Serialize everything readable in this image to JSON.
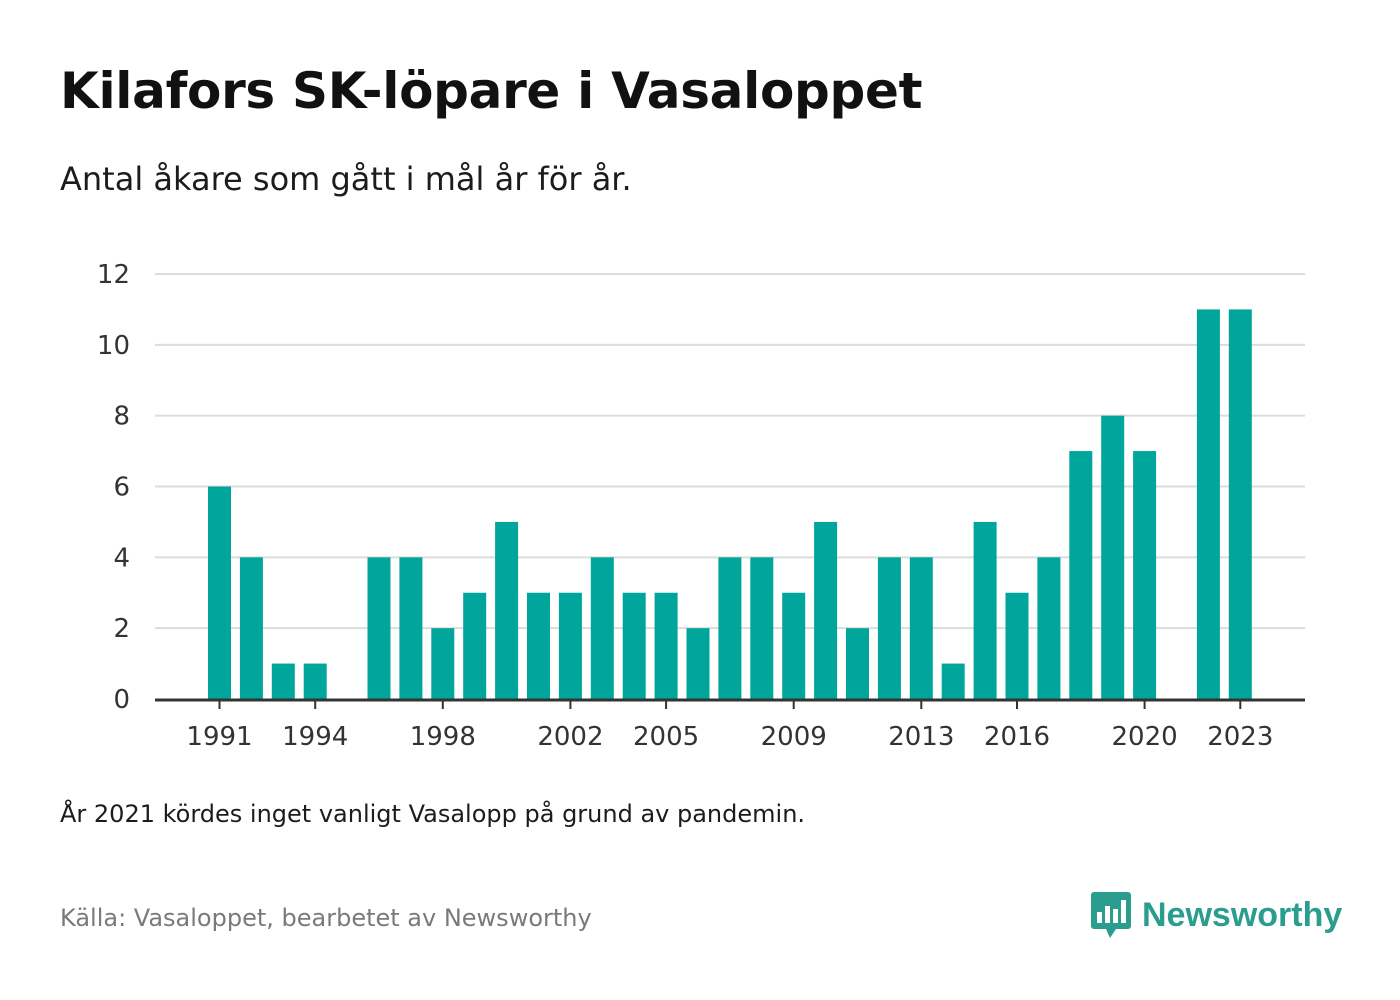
{
  "header": {
    "title": "Kilafors SK-löpare i Vasaloppet",
    "subtitle": "Antal åkare som gått i mål år för år."
  },
  "footer": {
    "note": "År 2021 kördes inget vanligt Vasalopp på grund av pandemin.",
    "source": "Källa: Vasaloppet, bearbetet av Newsworthy",
    "brand": "Newsworthy",
    "brand_icon": "newsworthy-chart-icon"
  },
  "colors": {
    "bar": "#00a59b",
    "grid": "#dcdcdc",
    "axis": "#333333",
    "brand": "#2a9d8f"
  },
  "chart_data": {
    "type": "bar",
    "categories": [
      "1991",
      "1992",
      "1993",
      "1994",
      "1995",
      "1996",
      "1997",
      "1998",
      "1999",
      "2000",
      "2001",
      "2002",
      "2003",
      "2004",
      "2005",
      "2006",
      "2007",
      "2008",
      "2009",
      "2010",
      "2011",
      "2012",
      "2013",
      "2014",
      "2015",
      "2016",
      "2017",
      "2018",
      "2019",
      "2020",
      "2021",
      "2022",
      "2023"
    ],
    "values": [
      6,
      4,
      1,
      1,
      null,
      4,
      4,
      2,
      3,
      5,
      3,
      3,
      4,
      3,
      3,
      2,
      4,
      4,
      3,
      5,
      2,
      4,
      4,
      1,
      5,
      3,
      4,
      7,
      8,
      7,
      null,
      11,
      11
    ],
    "x_tick_labels": [
      "1991",
      "1994",
      "1998",
      "2002",
      "2005",
      "2009",
      "2013",
      "2016",
      "2020",
      "2023"
    ],
    "y_ticks": [
      0,
      2,
      4,
      6,
      8,
      10,
      12
    ],
    "ylim": [
      0,
      12
    ],
    "grid": true,
    "legend": "none"
  }
}
